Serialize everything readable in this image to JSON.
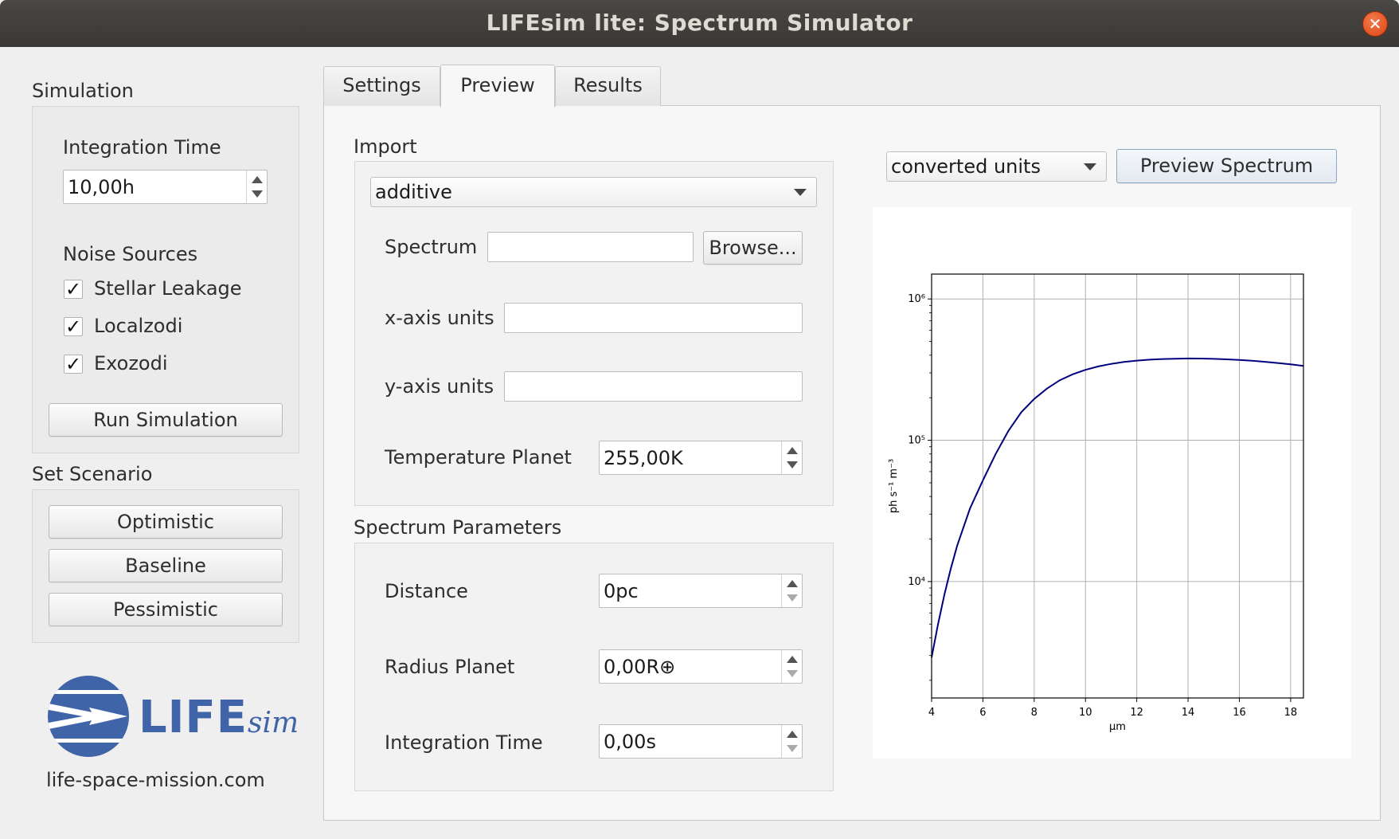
{
  "window": {
    "title": "LIFEsim lite: Spectrum Simulator",
    "close_glyph": "✕"
  },
  "sidebar": {
    "simulation": {
      "title": "Simulation",
      "integration_time_label": "Integration Time",
      "integration_time_value": "10,00h",
      "noise_sources_label": "Noise Sources",
      "noise_sources": [
        {
          "label": "Stellar Leakage",
          "checked": true
        },
        {
          "label": "Localzodi",
          "checked": true
        },
        {
          "label": "Exozodi",
          "checked": true
        }
      ],
      "checkmark": "✓",
      "run_button": "Run Simulation"
    },
    "scenario": {
      "title": "Set Scenario",
      "buttons": [
        "Optimistic",
        "Baseline",
        "Pessimistic"
      ]
    },
    "logo": {
      "text": "LIFE",
      "suffix": "sim",
      "url": "life-space-mission.com"
    }
  },
  "tabs": [
    {
      "label": "Settings",
      "active": false
    },
    {
      "label": "Preview",
      "active": true
    },
    {
      "label": "Results",
      "active": false
    }
  ],
  "import": {
    "title": "Import",
    "mode": "additive",
    "spectrum_label": "Spectrum",
    "spectrum_value": "",
    "browse_button": "Browse...",
    "x_units_label": "x-axis units",
    "x_units_value": "",
    "y_units_label": "y-axis units",
    "y_units_value": "",
    "temperature_label": "Temperature Planet",
    "temperature_value": "255,00K"
  },
  "spectrum_parameters": {
    "title": "Spectrum Parameters",
    "distance_label": "Distance",
    "distance_value": "0pc",
    "radius_label": "Radius Planet",
    "radius_value": "0,00R⊕",
    "integration_label": "Integration Time",
    "integration_value": "0,00s"
  },
  "preview": {
    "units_mode": "converted units",
    "preview_button": "Preview Spectrum"
  },
  "chart_data": {
    "type": "line",
    "title": "",
    "xlabel": "μm",
    "ylabel": "ph s⁻¹ m⁻³",
    "xlim": [
      4,
      18.5
    ],
    "ylim": [
      1500,
      1500000
    ],
    "y_scale": "log",
    "grid": true,
    "x_ticks": [
      4,
      6,
      8,
      10,
      12,
      14,
      16,
      18
    ],
    "y_ticks": [
      {
        "value": 10000,
        "label": "10⁴"
      },
      {
        "value": 100000,
        "label": "10⁵"
      },
      {
        "value": 1000000,
        "label": "10⁶"
      }
    ],
    "series": [
      {
        "color": "#00007f",
        "x": [
          4,
          4.25,
          4.5,
          4.75,
          5,
          5.5,
          6,
          6.5,
          7,
          7.5,
          8,
          8.5,
          9,
          9.5,
          10,
          10.5,
          11,
          11.5,
          12,
          12.5,
          13,
          13.5,
          14,
          14.5,
          15,
          15.5,
          16,
          16.5,
          17,
          17.5,
          18,
          18.5
        ],
        "y": [
          2900,
          5000,
          8100,
          12400,
          18000,
          33000,
          52000,
          80000,
          117000,
          158000,
          196000,
          232000,
          266000,
          293000,
          315000,
          333000,
          347000,
          358000,
          366000,
          372000,
          376000,
          378000,
          379000,
          378500,
          377000,
          374000,
          370000,
          365000,
          359000,
          352000,
          345000,
          336000
        ]
      }
    ]
  }
}
